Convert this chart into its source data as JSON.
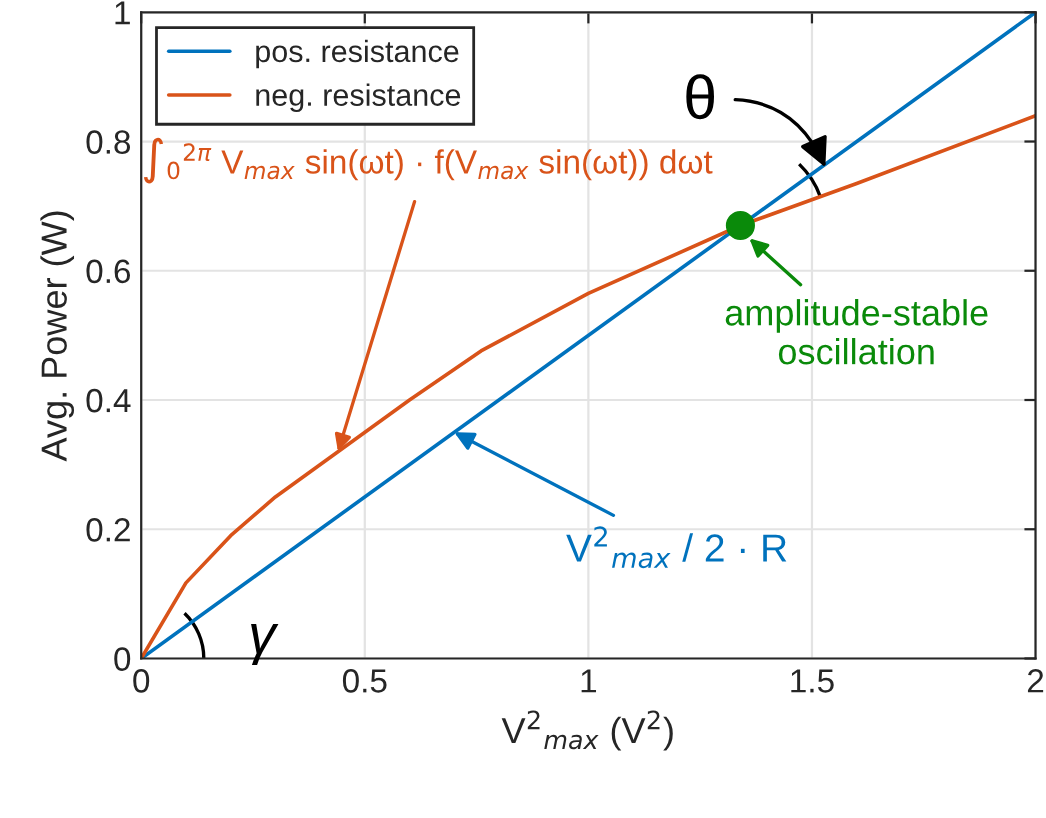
{
  "chart_data": {
    "type": "line",
    "xlabel": "V$^{2}$$_{max}$ (V$^{2}$)",
    "ylabel": "Avg. Power (W)",
    "xlim": [
      0,
      2
    ],
    "ylim": [
      0,
      1
    ],
    "xticks": [
      0,
      0.5,
      1,
      1.5,
      2
    ],
    "yticks": [
      0,
      0.2,
      0.4,
      0.6,
      0.8,
      1
    ],
    "grid": true,
    "legend": "top left",
    "line_style": "solid",
    "series": [
      {
        "name": "pos. resistance",
        "color": "#0072bd",
        "x": [
          0,
          2
        ],
        "values": [
          0,
          1
        ]
      },
      {
        "name": "neg. resistance",
        "color": "#d95319",
        "x": [
          0,
          0.1,
          0.2,
          0.3,
          0.44,
          0.6,
          0.76,
          1.0,
          1.34,
          1.6,
          2.0
        ],
        "values": [
          0,
          0.117,
          0.19,
          0.25,
          0.32,
          0.4,
          0.476,
          0.565,
          0.67,
          0.735,
          0.84
        ]
      },
      {
        "type": "scatter",
        "color": "#0a8a0a",
        "marker": "circle",
        "x": [
          1.34
        ],
        "values": [
          0.67
        ]
      }
    ],
    "annotations": [
      {
        "text": "∫$_{0}$$^{2π}$ V$_{max}$ sin(ωt) · f(V$_{max}$ sin(ωt)) dωt",
        "x": 0.44,
        "y": 0.32
      },
      {
        "text": "V$^{2}$$_{max}$ / 2 · R",
        "x": 0.7,
        "y": 0.35
      },
      {
        "text": "amplitude-stable\noscillation",
        "x": 1.36,
        "y": 0.65
      },
      {
        "text": "θ",
        "x": 1.53,
        "y": 0.76
      },
      "γ"
    ]
  }
}
